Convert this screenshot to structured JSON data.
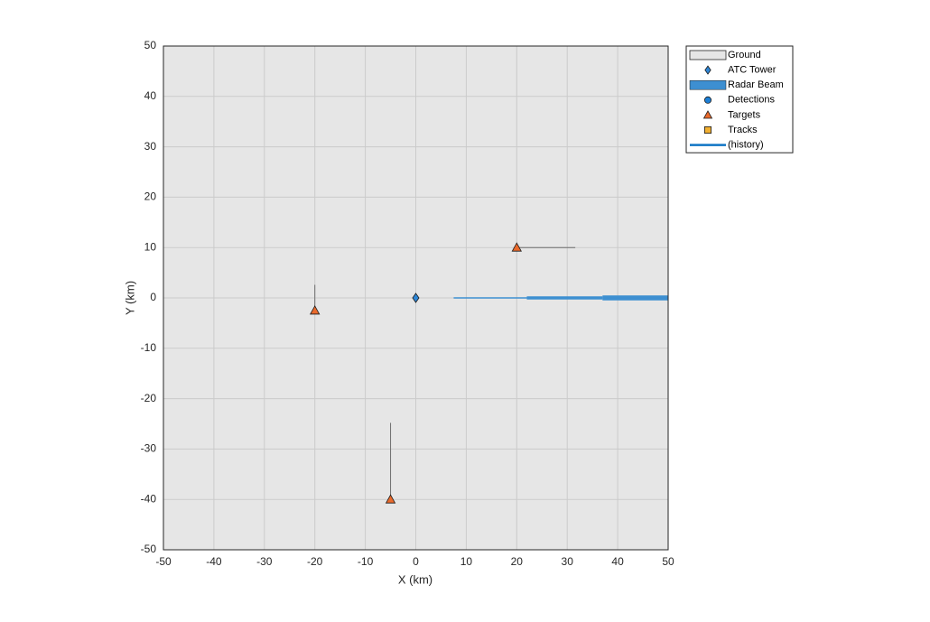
{
  "chart_data": {
    "type": "scatter",
    "xlabel": "X (km)",
    "ylabel": "Y (km)",
    "xlim": [
      -50,
      50
    ],
    "ylim": [
      -50,
      50
    ],
    "xticks": [
      -50,
      -40,
      -30,
      -20,
      -10,
      0,
      10,
      20,
      30,
      40,
      50
    ],
    "yticks": [
      -50,
      -40,
      -30,
      -20,
      -10,
      0,
      10,
      20,
      30,
      40,
      50
    ],
    "grid": true,
    "legend": "outside-top-right",
    "series": [
      {
        "name": "Ground",
        "color": "#e6e6e6",
        "marker": "box"
      },
      {
        "name": "ATC Tower",
        "color": "#2e86d6",
        "marker": "diamond",
        "x": [
          0
        ],
        "y": [
          0
        ]
      },
      {
        "name": "Radar Beam",
        "color": "#3d8fd1",
        "marker": "beam",
        "x": [
          7.5,
          22,
          37,
          50
        ],
        "y": [
          0,
          0,
          0,
          0
        ]
      },
      {
        "name": "Detections",
        "color": "#1c7fd6",
        "marker": "circle"
      },
      {
        "name": "Targets",
        "color": "#ea6a2c",
        "marker": "triangle",
        "x": [
          20,
          -20,
          -5
        ],
        "y": [
          10,
          -2.5,
          -40
        ]
      },
      {
        "name": "Tracks",
        "color": "#f2b031",
        "marker": "square"
      },
      {
        "name": "(history)",
        "color": "#0f74c4",
        "marker": "line"
      }
    ],
    "trajectories": {
      "color": "#6e6e6e",
      "paths": [
        {
          "x": [
            20,
            31.6
          ],
          "y": [
            10,
            10
          ]
        },
        {
          "x": [
            -20,
            -20
          ],
          "y": [
            -2.5,
            2.6
          ]
        },
        {
          "x": [
            -5,
            -5
          ],
          "y": [
            -40,
            -24.8
          ]
        }
      ]
    }
  }
}
